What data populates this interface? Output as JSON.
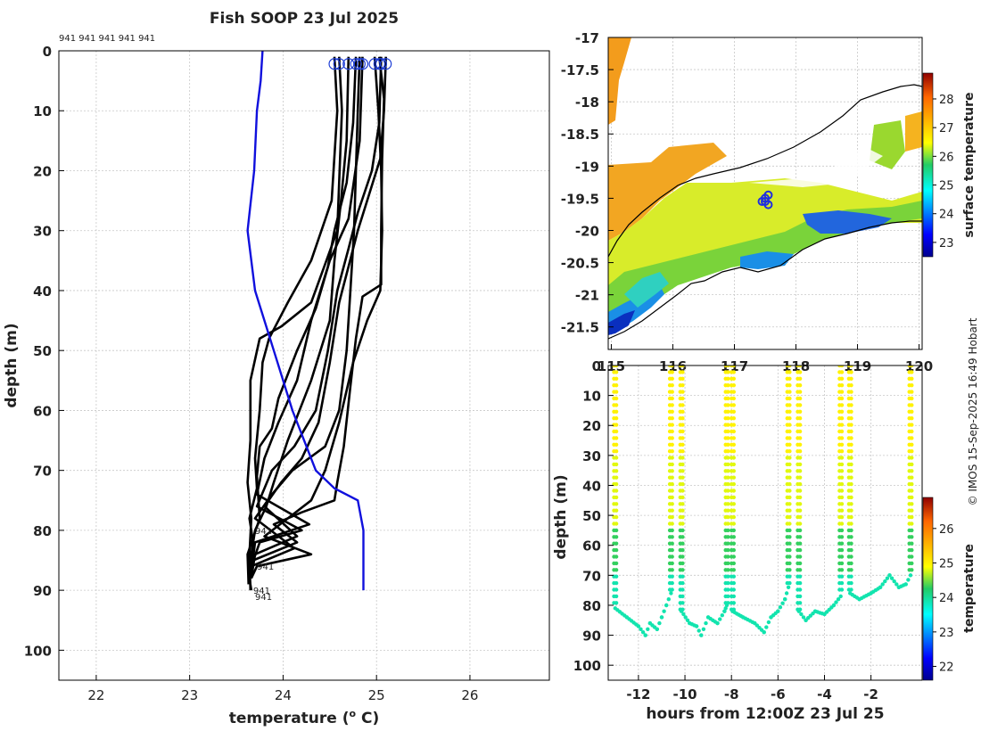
{
  "figure": {
    "credit": "© IMOS 15-Sep-2025 16:49 Hobart"
  },
  "chart_data": [
    {
      "id": "profiles",
      "type": "line",
      "title": "Fish SOOP 23 Jul 2025",
      "xlabel": "temperature (",
      "xlabel_sup": "o",
      "xlabel_tail": " C)",
      "ylabel": "depth (m)",
      "xlim": [
        21.6,
        26.85
      ],
      "ylim": [
        105,
        0
      ],
      "xticks": [
        22,
        23,
        24,
        25,
        26
      ],
      "yticks": [
        0,
        10,
        20,
        30,
        40,
        50,
        60,
        70,
        80,
        90,
        100
      ],
      "top_labels": [
        "941",
        "941",
        "941",
        "941",
        "941"
      ],
      "bottom_labels": [
        "941",
        "941",
        "941",
        "941"
      ],
      "climatology": {
        "name": "climatology",
        "color": "#1010dd",
        "points": [
          [
            23.78,
            0
          ],
          [
            23.76,
            5
          ],
          [
            23.72,
            10
          ],
          [
            23.69,
            20
          ],
          [
            23.62,
            30
          ],
          [
            23.7,
            40
          ],
          [
            23.9,
            50
          ],
          [
            24.1,
            60
          ],
          [
            24.35,
            70
          ],
          [
            24.55,
            73
          ],
          [
            24.8,
            75
          ],
          [
            24.86,
            80
          ],
          [
            24.86,
            90
          ]
        ]
      },
      "profiles": [
        {
          "name": "p1",
          "points": [
            [
              24.6,
              1
            ],
            [
              24.63,
              10
            ],
            [
              24.58,
              30
            ],
            [
              24.3,
              42
            ],
            [
              23.98,
              46
            ],
            [
              23.75,
              48
            ],
            [
              23.65,
              55
            ],
            [
              23.65,
              65
            ],
            [
              23.62,
              72
            ],
            [
              23.66,
              78
            ],
            [
              23.64,
              84
            ],
            [
              23.65,
              90
            ]
          ]
        },
        {
          "name": "p2",
          "points": [
            [
              24.55,
              1
            ],
            [
              24.58,
              10
            ],
            [
              24.52,
              25
            ],
            [
              24.3,
              35
            ],
            [
              24.05,
              42
            ],
            [
              23.85,
              48
            ],
            [
              23.78,
              52
            ],
            [
              23.75,
              60
            ],
            [
              23.7,
              68
            ],
            [
              23.72,
              73
            ],
            [
              23.64,
              78
            ],
            [
              23.68,
              82
            ],
            [
              23.64,
              88
            ],
            [
              23.66,
              90
            ]
          ]
        },
        {
          "name": "p3",
          "points": [
            [
              24.85,
              1
            ],
            [
              24.82,
              15
            ],
            [
              24.7,
              28
            ],
            [
              24.5,
              35
            ],
            [
              24.35,
              43
            ],
            [
              24.15,
              50
            ],
            [
              23.95,
              58
            ],
            [
              23.88,
              63
            ],
            [
              23.75,
              66
            ],
            [
              23.72,
              71
            ],
            [
              23.75,
              78
            ],
            [
              23.62,
              84
            ],
            [
              23.63,
              89
            ]
          ]
        },
        {
          "name": "p4",
          "points": [
            [
              24.78,
              1
            ],
            [
              24.75,
              12
            ],
            [
              24.68,
              22
            ],
            [
              24.55,
              30
            ],
            [
              24.48,
              36
            ],
            [
              24.3,
              45
            ],
            [
              24.15,
              55
            ],
            [
              23.95,
              62
            ],
            [
              23.8,
              68
            ],
            [
              23.72,
              74
            ],
            [
              24.28,
              79
            ],
            [
              23.7,
              82
            ],
            [
              23.66,
              87
            ]
          ]
        },
        {
          "name": "p5",
          "points": [
            [
              25.05,
              1
            ],
            [
              25.03,
              12
            ],
            [
              24.95,
              20
            ],
            [
              24.8,
              27
            ],
            [
              24.7,
              33
            ],
            [
              24.58,
              40
            ],
            [
              24.48,
              50
            ],
            [
              24.35,
              60
            ],
            [
              24.12,
              66
            ],
            [
              23.88,
              70
            ],
            [
              23.72,
              76
            ],
            [
              24.2,
              80
            ],
            [
              23.75,
              82
            ],
            [
              23.66,
              86
            ]
          ]
        },
        {
          "name": "p6",
          "points": [
            [
              25.1,
              1
            ],
            [
              25.08,
              10
            ],
            [
              25.04,
              18
            ],
            [
              24.9,
              25
            ],
            [
              24.8,
              30
            ],
            [
              24.7,
              36
            ],
            [
              24.6,
              42
            ],
            [
              24.5,
              52
            ],
            [
              24.38,
              62
            ],
            [
              24.2,
              68
            ],
            [
              23.98,
              72
            ],
            [
              23.8,
              76
            ],
            [
              24.15,
              81
            ],
            [
              23.7,
              84
            ],
            [
              23.66,
              88
            ]
          ]
        },
        {
          "name": "p7",
          "points": [
            [
              24.82,
              1
            ],
            [
              24.8,
              10
            ],
            [
              24.78,
              20
            ],
            [
              24.76,
              30
            ],
            [
              24.72,
              40
            ],
            [
              24.68,
              50
            ],
            [
              24.6,
              60
            ],
            [
              24.45,
              66
            ],
            [
              24.1,
              70
            ],
            [
              23.88,
              74
            ],
            [
              23.7,
              78
            ],
            [
              24.12,
              83
            ],
            [
              23.66,
              86
            ]
          ]
        },
        {
          "name": "p8",
          "points": [
            [
              24.98,
              1
            ],
            [
              25.02,
              10
            ],
            [
              25.05,
              20
            ],
            [
              25.06,
              30
            ],
            [
              25.04,
              40
            ],
            [
              24.9,
              45
            ],
            [
              24.75,
              52
            ],
            [
              24.6,
              62
            ],
            [
              24.45,
              70
            ],
            [
              24.3,
              75
            ],
            [
              24.05,
              78
            ],
            [
              23.8,
              81
            ],
            [
              24.3,
              84
            ],
            [
              23.72,
              86
            ],
            [
              23.66,
              88
            ]
          ]
        },
        {
          "name": "p9",
          "points": [
            [
              25.03,
              1
            ],
            [
              25.08,
              8
            ],
            [
              25.06,
              18
            ],
            [
              25.05,
              30
            ],
            [
              25.05,
              39
            ],
            [
              24.85,
              41
            ],
            [
              24.78,
              48
            ],
            [
              24.72,
              56
            ],
            [
              24.65,
              66
            ],
            [
              24.58,
              72
            ],
            [
              24.55,
              75
            ],
            [
              24.2,
              77
            ],
            [
              23.9,
              79
            ],
            [
              24.15,
              82
            ],
            [
              23.68,
              85
            ]
          ]
        },
        {
          "name": "p10",
          "points": [
            [
              24.7,
              1
            ],
            [
              24.68,
              15
            ],
            [
              24.62,
              25
            ],
            [
              24.55,
              35
            ],
            [
              24.5,
              45
            ],
            [
              24.3,
              55
            ],
            [
              24.05,
              65
            ],
            [
              23.9,
              72
            ],
            [
              23.82,
              76
            ],
            [
              23.7,
              80
            ],
            [
              23.64,
              86
            ]
          ]
        }
      ]
    },
    {
      "id": "sst_map",
      "type": "heatmap",
      "xlim": [
        114.95,
        120.05
      ],
      "ylim": [
        -21.85,
        -17
      ],
      "xticks": [
        115,
        116,
        117,
        118,
        119,
        120
      ],
      "yticks": [
        -17,
        -17.5,
        -18,
        -18.5,
        -19,
        -19.5,
        -20,
        -20.5,
        -21,
        -21.5
      ],
      "colorbar_label": "surface temperature",
      "colorbar_range": [
        22.5,
        28.9
      ],
      "colorbar_ticks": [
        23,
        24,
        25,
        26,
        27,
        28
      ],
      "stations": [
        [
          117.45,
          -19.55
        ],
        [
          117.5,
          -19.5
        ],
        [
          117.55,
          -19.45
        ],
        [
          117.5,
          -19.55
        ],
        [
          117.55,
          -19.6
        ]
      ]
    },
    {
      "id": "depth_time",
      "type": "scatter",
      "xlabel": "hours from 12:00Z 23 Jul 25",
      "ylabel": "depth (m)",
      "xlim": [
        -13.3,
        0.2
      ],
      "ylim": [
        105,
        0
      ],
      "xticks": [
        -12,
        -10,
        -8,
        -6,
        -4,
        -2
      ],
      "yticks": [
        0,
        10,
        20,
        30,
        40,
        50,
        60,
        70,
        80,
        90,
        100
      ],
      "colorbar_label": "temperature",
      "colorbar_range": [
        21.6,
        26.9
      ],
      "colorbar_ticks": [
        22,
        23,
        24,
        25,
        26
      ],
      "casts": [
        {
          "start": -13.0,
          "end": -10.6,
          "bottom_profile": [
            [
              -13.0,
              81
            ],
            [
              -12.5,
              84
            ],
            [
              -12.0,
              87
            ],
            [
              -11.7,
              90
            ],
            [
              -11.5,
              86
            ],
            [
              -11.2,
              88
            ],
            [
              -11.0,
              84
            ],
            [
              -10.8,
              80
            ],
            [
              -10.6,
              76
            ]
          ]
        },
        {
          "start": -10.15,
          "end": -8.2,
          "bottom_profile": [
            [
              -10.15,
              82
            ],
            [
              -9.8,
              86
            ],
            [
              -9.5,
              87
            ],
            [
              -9.3,
              90
            ],
            [
              -9.0,
              84
            ],
            [
              -8.6,
              86
            ],
            [
              -8.3,
              82
            ],
            [
              -8.2,
              80
            ]
          ]
        },
        {
          "start": -7.95,
          "end": -5.55,
          "bottom_profile": [
            [
              -7.95,
              82
            ],
            [
              -7.5,
              84
            ],
            [
              -7.0,
              86
            ],
            [
              -6.6,
              89
            ],
            [
              -6.3,
              84
            ],
            [
              -6.0,
              82
            ],
            [
              -5.7,
              78
            ],
            [
              -5.55,
              74
            ]
          ]
        },
        {
          "start": -5.1,
          "end": -3.3,
          "bottom_profile": [
            [
              -5.1,
              82
            ],
            [
              -4.8,
              85
            ],
            [
              -4.4,
              82
            ],
            [
              -4.0,
              83
            ],
            [
              -3.6,
              80
            ],
            [
              -3.3,
              77
            ]
          ]
        },
        {
          "start": -2.9,
          "end": -0.3,
          "bottom_profile": [
            [
              -2.9,
              76
            ],
            [
              -2.5,
              78
            ],
            [
              -2.0,
              76
            ],
            [
              -1.6,
              74
            ],
            [
              -1.2,
              70
            ],
            [
              -0.8,
              74
            ],
            [
              -0.5,
              73
            ],
            [
              -0.3,
              70
            ]
          ]
        }
      ]
    }
  ]
}
